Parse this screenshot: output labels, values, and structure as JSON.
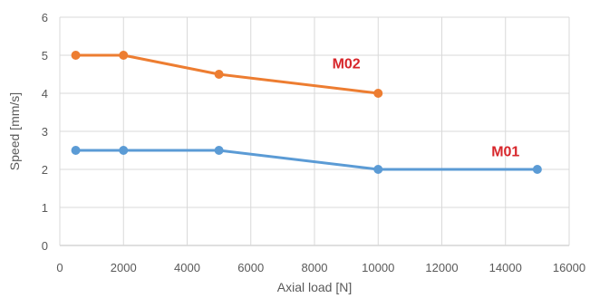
{
  "chart_data": {
    "type": "line",
    "title": "",
    "xlabel": "Axial load [N]",
    "ylabel": "Speed [mm/s]",
    "xlim": [
      0,
      16000
    ],
    "ylim": [
      0,
      6
    ],
    "xticks": [
      0,
      2000,
      4000,
      6000,
      8000,
      10000,
      12000,
      14000,
      16000
    ],
    "yticks": [
      0,
      1,
      2,
      3,
      4,
      5,
      6
    ],
    "grid": true,
    "legend": "none",
    "series": [
      {
        "name": "M02",
        "color": "#ed7d31",
        "label_color": "#d7262b",
        "x": [
          500,
          2000,
          5000,
          10000
        ],
        "y": [
          5,
          5,
          4.5,
          4
        ]
      },
      {
        "name": "M01",
        "color": "#5b9bd5",
        "label_color": "#d7262b",
        "x": [
          500,
          2000,
          5000,
          10000,
          15000
        ],
        "y": [
          2.5,
          2.5,
          2.5,
          2,
          2
        ]
      }
    ],
    "annotations": [
      {
        "series": "M02",
        "text": "M02",
        "x": 9000,
        "y": 4.65
      },
      {
        "series": "M01",
        "text": "M01",
        "x": 14000,
        "y": 2.35
      }
    ]
  }
}
